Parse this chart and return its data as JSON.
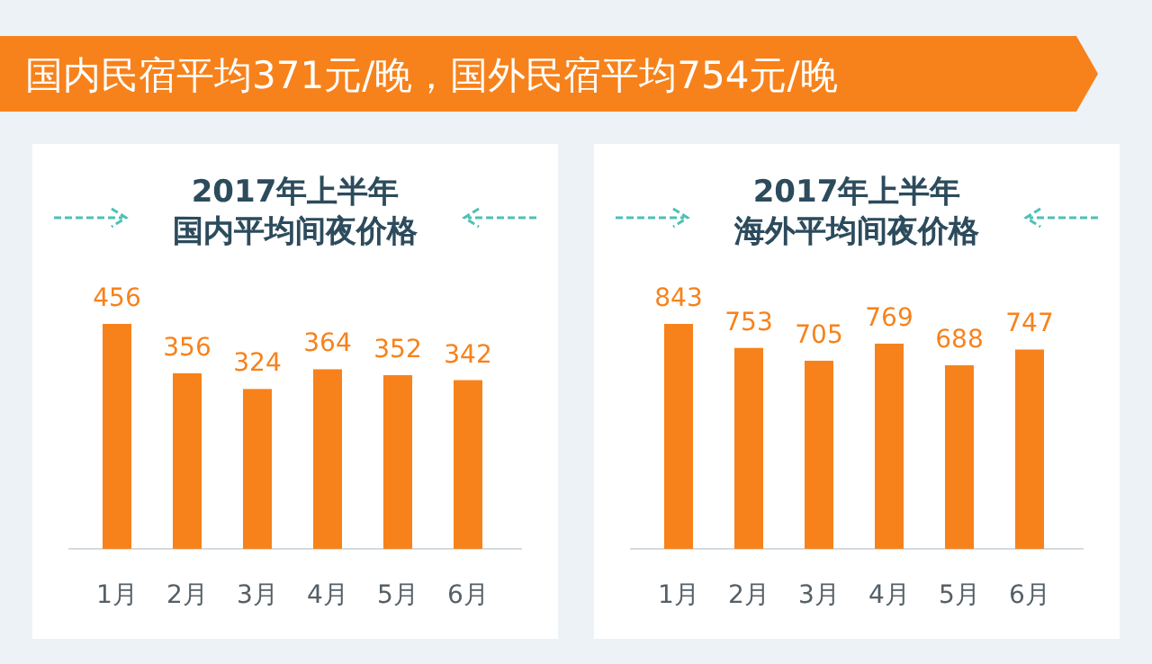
{
  "chart_data": [
    {
      "type": "other",
      "title": "国内民宿平均371元/晚，国外民宿平均754元/晚"
    },
    {
      "type": "bar",
      "title": "2017年上半年",
      "subtitle": "国内平均间夜价格",
      "categories": [
        "1月",
        "2月",
        "3月",
        "4月",
        "5月",
        "6月"
      ],
      "values": [
        456,
        356,
        324,
        364,
        352,
        342
      ],
      "color": "#f7821b",
      "data_labels": true
    },
    {
      "type": "bar",
      "title": "2017年上半年",
      "subtitle": "海外平均间夜价格",
      "categories": [
        "1月",
        "2月",
        "3月",
        "4月",
        "5月",
        "6月"
      ],
      "values": [
        843,
        753,
        705,
        769,
        688,
        747
      ],
      "color": "#f7821b",
      "data_labels": true
    }
  ]
}
